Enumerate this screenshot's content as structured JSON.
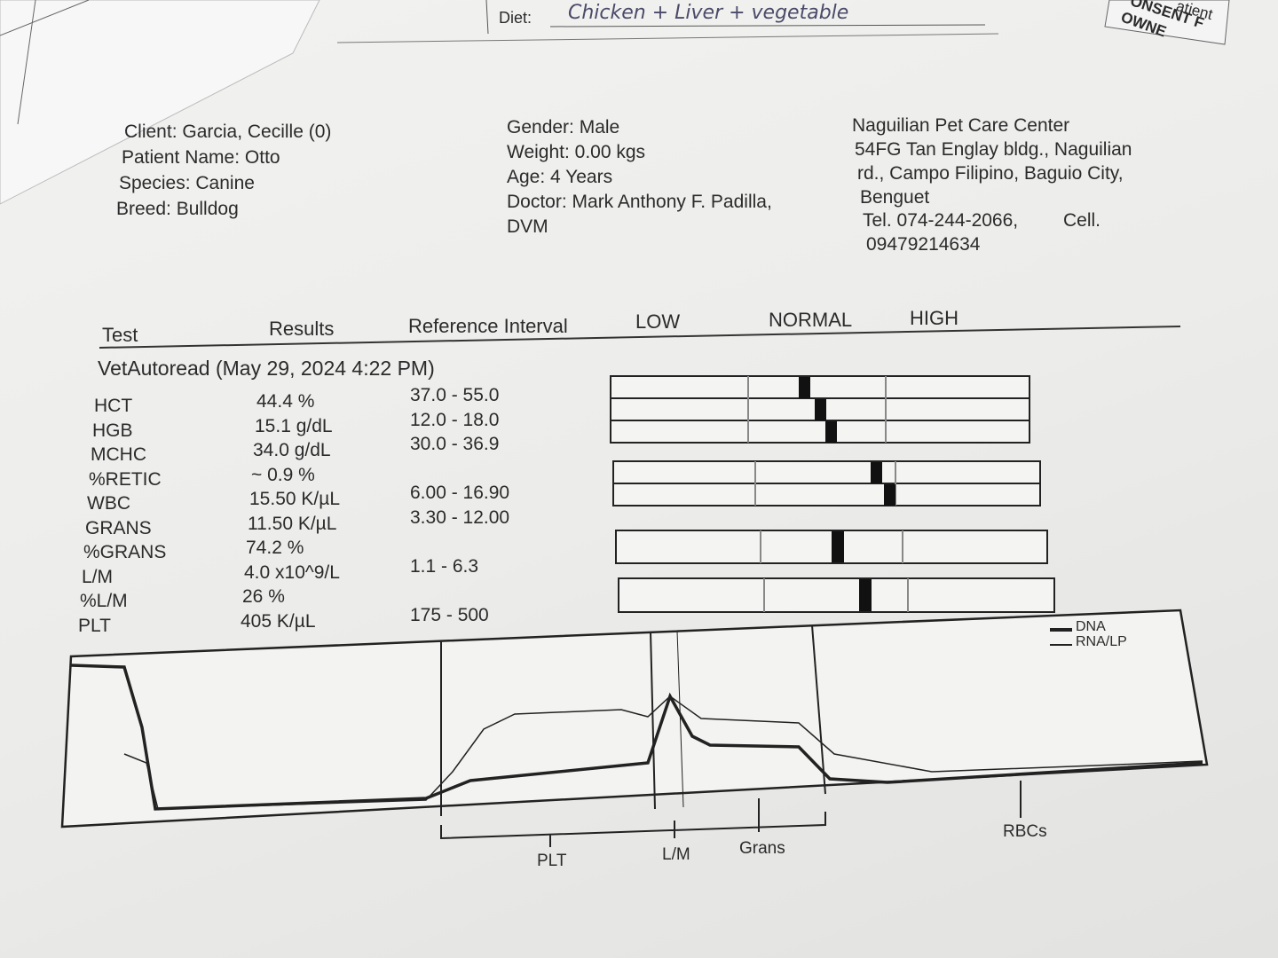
{
  "top_strip": {
    "diet_label": "Diet:",
    "diet_value": "Chicken + Liver + vegetable",
    "corner_texts": [
      "atient",
      "ONSENT F",
      "OWNE"
    ]
  },
  "client": {
    "lines": [
      "Client: Garcia, Cecille (0)",
      "Patient Name: Otto",
      "Species: Canine",
      "Breed: Bulldog"
    ]
  },
  "patient": {
    "lines": [
      "Gender: Male",
      "Weight: 0.00 kgs",
      "Age: 4 Years",
      "Doctor: Mark Anthony F. Padilla,",
      "DVM"
    ]
  },
  "clinic": {
    "lines": [
      "Naguilian Pet Care Center",
      "54FG Tan Englay bldg., Naguilian",
      "rd., Campo Filipino, Baguio City,",
      "Benguet",
      "Tel. 074-244-2066,",
      "Cell.",
      "09479214634"
    ]
  },
  "table": {
    "headers": [
      "Test",
      "Results",
      "Reference Interval",
      "LOW",
      "NORMAL",
      "HIGH"
    ],
    "section": "VetAutoread (May 29, 2024 4:22 PM)",
    "rows": [
      {
        "test": "HCT",
        "result": "44.4 %",
        "reference": "37.0 - 55.0"
      },
      {
        "test": "HGB",
        "result": "15.1 g/dL",
        "reference": "12.0 - 18.0"
      },
      {
        "test": "MCHC",
        "result": "34.0 g/dL",
        "reference": "30.0 - 36.9"
      },
      {
        "test": "%RETIC",
        "result": "~ 0.9 %"
      },
      {
        "test": "WBC",
        "result": "15.50 K/µL",
        "reference": "6.00 - 16.90"
      },
      {
        "test": "GRANS",
        "result": "11.50 K/µL",
        "reference": "3.30 - 12.00"
      },
      {
        "test": "%GRANS",
        "result": "74.2 %"
      },
      {
        "test": "L/M",
        "result": "4.0 x10^9/L",
        "reference": "1.1 - 6.3"
      },
      {
        "test": "%L/M",
        "result": "26 %"
      },
      {
        "test": "PLT",
        "result": "405 K/µL",
        "reference": "175 - 500"
      }
    ]
  },
  "histogram": {
    "legend": [
      "DNA",
      "RNA/LP"
    ],
    "axis_labels": [
      "PLT",
      "L/M",
      "Grans",
      "RBCs"
    ]
  }
}
